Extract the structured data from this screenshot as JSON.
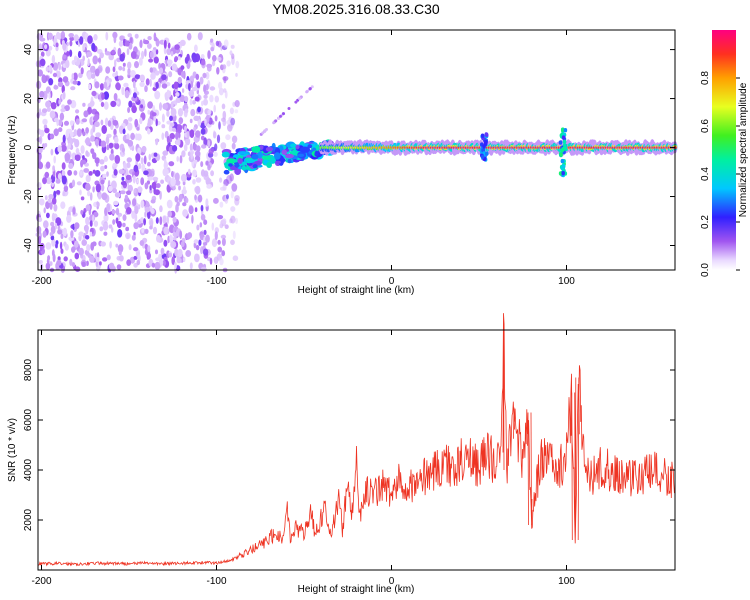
{
  "title": "YM08.2025.316.08.33.C30",
  "chart_data": [
    {
      "type": "heatmap",
      "xlabel": "Height of straight line (km)",
      "ylabel": "Frequency (Hz)",
      "xlim": [
        -202,
        162
      ],
      "ylim": [
        -50,
        48
      ],
      "xticks": [
        "-200",
        "-100",
        "0",
        "100"
      ],
      "yticks": [
        "40",
        "20",
        "0",
        "-20",
        "-40"
      ],
      "xtick_values": [
        -200,
        -100,
        0,
        100
      ],
      "ytick_values": [
        40,
        20,
        0,
        -20,
        -40
      ],
      "colorbar": {
        "label": "Normalized spectral amplitude",
        "range": [
          0,
          1
        ],
        "ticks": [
          "0.0",
          "0.2",
          "0.4",
          "0.6",
          "0.8"
        ],
        "tick_values": [
          0.0,
          0.2,
          0.4,
          0.6,
          0.8
        ]
      },
      "features": [
        {
          "name": "noise",
          "x_range": [
            -202,
            -88
          ],
          "freq_range": [
            -50,
            46
          ],
          "amplitude": 0.1
        },
        {
          "name": "onset",
          "x_range": [
            -95,
            -40
          ],
          "freq_range": [
            -10,
            8
          ],
          "amplitude": 0.4
        },
        {
          "name": "signal",
          "x_range": [
            -40,
            162
          ],
          "freq": 0,
          "amplitude": 0.95
        },
        {
          "name": "spike",
          "x": 53,
          "freq_range": [
            -5,
            6
          ],
          "amplitude": 0.35
        },
        {
          "name": "spike",
          "x": 98,
          "freq_range": [
            -12,
            8
          ],
          "amplitude": 0.5
        }
      ]
    },
    {
      "type": "line",
      "xlabel": "Height of straight line (km)",
      "ylabel": "SNR (10 * v/v)",
      "xlim": [
        -202,
        162
      ],
      "ylim": [
        0,
        9600
      ],
      "xticks": [
        "-200",
        "-100",
        "0",
        "100"
      ],
      "yticks": [
        "8000",
        "6000",
        "4000",
        "2000"
      ],
      "xtick_values": [
        -200,
        -100,
        0,
        100
      ],
      "ytick_values": [
        8000,
        6000,
        4000,
        2000
      ],
      "series": [
        {
          "name": "SNR",
          "color": "#ee3322",
          "x": [
            -202,
            -190,
            -180,
            -170,
            -160,
            -150,
            -140,
            -130,
            -120,
            -110,
            -100,
            -92,
            -85,
            -78,
            -72,
            -66,
            -62,
            -60,
            -58,
            -55,
            -50,
            -46,
            -44,
            -42,
            -38,
            -35,
            -30,
            -28,
            -25,
            -22,
            -20,
            -18,
            -15,
            -10,
            -5,
            0,
            5,
            10,
            15,
            20,
            25,
            30,
            35,
            40,
            45,
            50,
            55,
            60,
            62,
            64,
            66,
            70,
            75,
            78,
            80,
            85,
            90,
            95,
            100,
            103,
            105,
            107,
            110,
            115,
            120,
            125,
            130,
            140,
            150,
            162
          ],
          "y": [
            250,
            260,
            240,
            270,
            260,
            250,
            280,
            250,
            270,
            300,
            280,
            400,
            600,
            900,
            1100,
            1500,
            1200,
            2900,
            1300,
            1800,
            1400,
            2300,
            1500,
            1700,
            2500,
            1400,
            2800,
            1600,
            3500,
            2000,
            4500,
            2300,
            3200,
            3000,
            3400,
            3000,
            3600,
            3500,
            3300,
            3900,
            4000,
            4300,
            4000,
            4400,
            4500,
            4200,
            4600,
            4200,
            4700,
            9600,
            4000,
            6500,
            4300,
            6300,
            1800,
            4400,
            4500,
            4000,
            4500,
            7100,
            1200,
            7700,
            4300,
            3800,
            4100,
            4000,
            3800,
            3700,
            3900,
            3600
          ]
        }
      ]
    }
  ]
}
